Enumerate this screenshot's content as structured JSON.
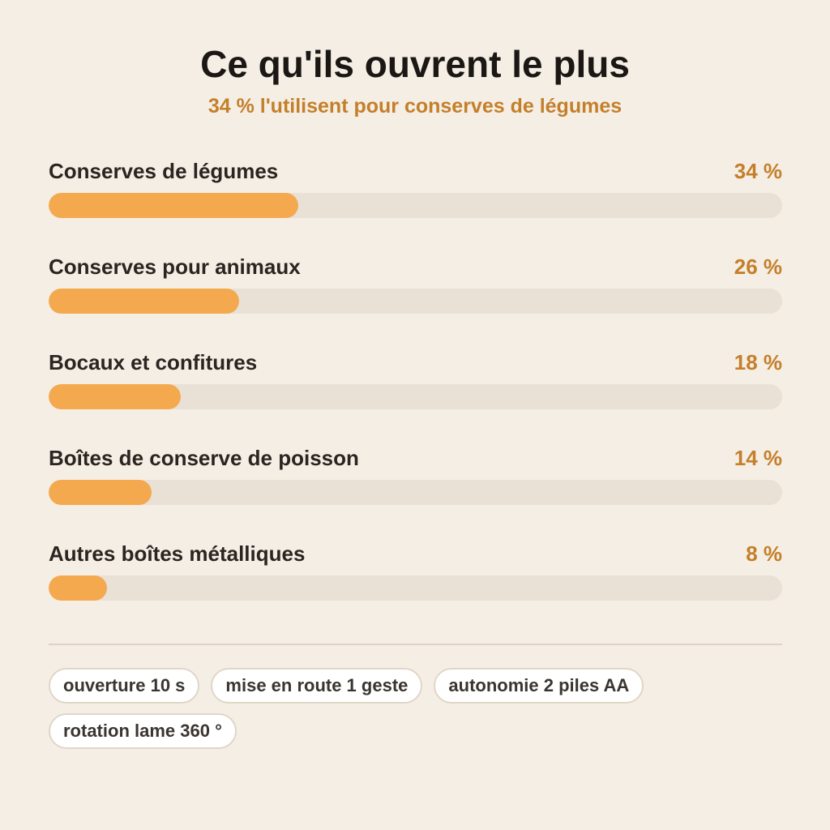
{
  "header": {
    "title": "Ce qu'ils ouvrent le plus",
    "subtitle": "34 % l'utilisent pour conserves de légumes"
  },
  "chart_data": {
    "type": "bar",
    "orientation": "horizontal",
    "title": "Ce qu'ils ouvrent le plus",
    "subtitle": "34 % l'utilisent pour conserves de légumes",
    "categories": [
      "Conserves de légumes",
      "Conserves pour animaux",
      "Bocaux et confitures",
      "Boîtes de conserve de poisson",
      "Autres boîtes métalliques"
    ],
    "values": [
      34,
      26,
      18,
      14,
      8
    ],
    "value_labels": [
      "34 %",
      "26 %",
      "18 %",
      "14 %",
      "8 %"
    ],
    "xlim": [
      0,
      100
    ],
    "unit": "%",
    "grid": false,
    "colors": {
      "bar": "#f4a94f",
      "track": "#e9e1d6",
      "value_text": "#c47f2a"
    }
  },
  "features": [
    "ouverture 10 s",
    "mise en route 1 geste",
    "autonomie 2 piles AA",
    "rotation lame 360 °"
  ]
}
